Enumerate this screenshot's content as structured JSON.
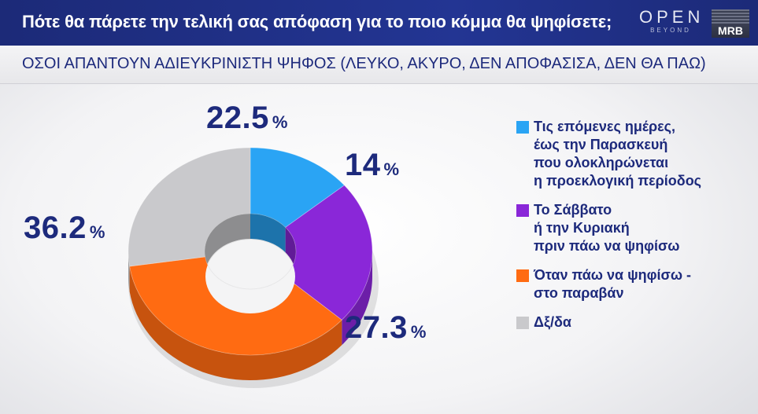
{
  "header": {
    "title": "Πότε θα πάρετε την τελική σας απόφαση για το ποιο κόμμα θα ψηφίσετε;",
    "logo_open": "OPEN",
    "logo_open_sub": "BEYOND",
    "logo_mrb": "MRB"
  },
  "subtitle": "ΟΣΟΙ ΑΠΑΝΤΟΥΝ ΑΔΙΕΥΚΡΙΝΙΣΤΗ  ΨΗΦΟΣ (ΛΕΥΚΟ, ΑΚΥΡΟ, ΔΕΝ ΑΠΟΦΑΣΙΣΑ, ΔΕΝ ΘΑ ΠΑΩ)",
  "chart_data": {
    "type": "pie",
    "style": "3d-donut",
    "categories": [
      "Τις επόμενες ημέρες, έως την Παρασκευή που ολοκληρώνεται η προεκλογική περίοδος",
      "Το Σάββατο ή την Κυριακή πριν πάω να ψηφίσω",
      "Όταν πάω να ψηφίσω - στο παραβάν",
      "Δξ/δα"
    ],
    "values": [
      14,
      22.5,
      36.2,
      27.3
    ],
    "value_labels": [
      "14",
      "22.5",
      "36.2",
      "27.3"
    ],
    "unit": "%",
    "colors": [
      "#2aa4f4",
      "#8a27d8",
      "#ff6b12",
      "#c9c9cc"
    ],
    "legend_position": "right"
  },
  "legend": [
    {
      "lines": [
        "Τις επόμενες ημέρες,",
        "έως την Παρασκευή",
        "που ολοκληρώνεται",
        "η προεκλογική περίοδος"
      ]
    },
    {
      "lines": [
        "Το Σάββατο",
        "ή την Κυριακή",
        "πριν πάω να ψηφίσω"
      ]
    },
    {
      "lines": [
        "Όταν πάω να ψηφίσω -",
        "στο παραβάν"
      ]
    },
    {
      "lines": [
        "Δξ/δα"
      ]
    }
  ]
}
